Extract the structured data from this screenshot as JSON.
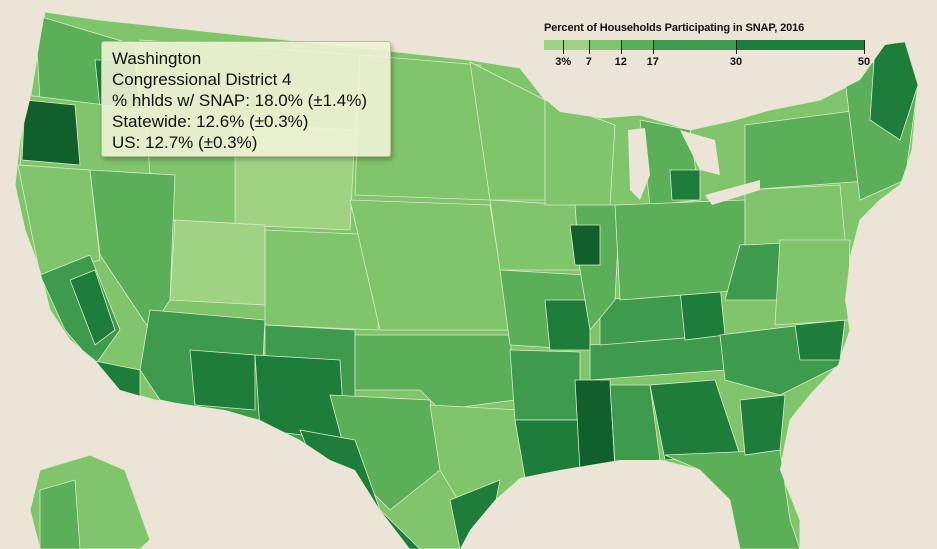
{
  "legend": {
    "title": "Percent of Households Participating in SNAP, 2016",
    "stops": [
      {
        "label": "3%",
        "value": 3
      },
      {
        "label": "7",
        "value": 7
      },
      {
        "label": "12",
        "value": 12
      },
      {
        "label": "17",
        "value": 17
      },
      {
        "label": "30",
        "value": 30
      },
      {
        "label": "50",
        "value": 50
      }
    ],
    "colors": [
      "#9fd383",
      "#80c46b",
      "#5aaf58",
      "#3e9a4c",
      "#1f7d3c"
    ]
  },
  "tooltip": {
    "state": "Washington",
    "district": "Congressional District 4",
    "district_rate": "% hhlds w/ SNAP: 18.0% (±1.4%)",
    "statewide_rate": "Statewide: 12.6% (±0.3%)",
    "us_rate": "US: 12.7% (±0.3%)"
  },
  "map_colors": {
    "background": "#ece4d6",
    "border": "#d9ecc8",
    "highlight": "#11602c"
  }
}
